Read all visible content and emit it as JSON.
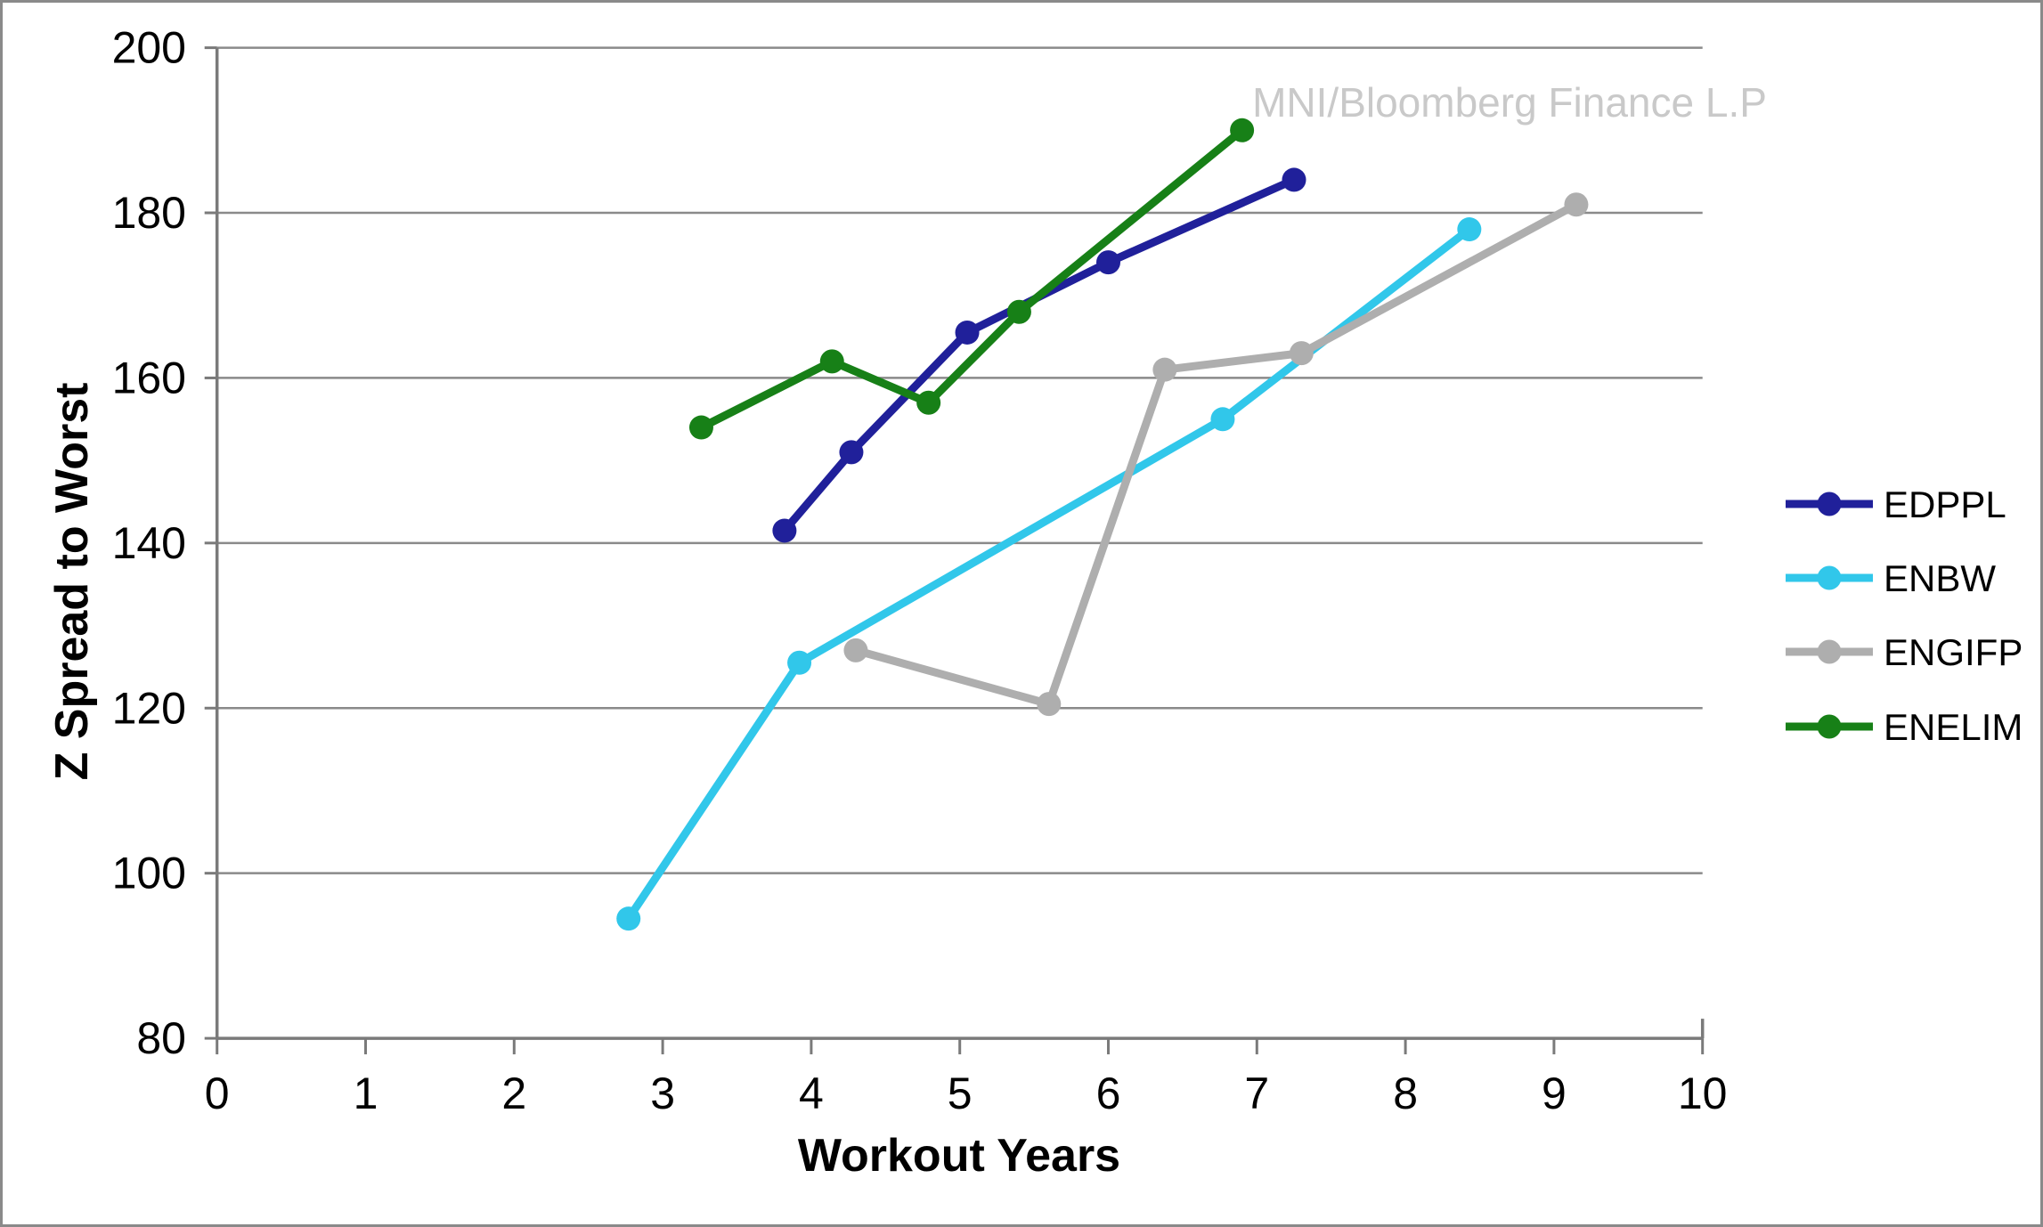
{
  "frame": {
    "background": "#ffffff",
    "border_color": "#8a8a8a"
  },
  "watermark": {
    "text": "MNI/Bloomberg Finance L.P",
    "color": "#c9c9c9"
  },
  "chart_data": {
    "type": "line",
    "title": "",
    "xlabel": "Workout Years",
    "ylabel": "Z Spread to Worst",
    "xlim": [
      0,
      10
    ],
    "ylim": [
      80,
      200
    ],
    "x_ticks": [
      0,
      1,
      2,
      3,
      4,
      5,
      6,
      7,
      8,
      9,
      10
    ],
    "y_ticks": [
      80,
      100,
      120,
      140,
      160,
      180,
      200
    ],
    "grid": "horizontal",
    "gridline_color": "#8a8a8a",
    "axis_color": "#7a7a7a",
    "legend_position": "right",
    "marker": "circle",
    "series": [
      {
        "name": "EDPPL",
        "color": "#20209a",
        "points": [
          [
            3.82,
            141.5
          ],
          [
            4.27,
            151
          ],
          [
            5.05,
            165.5
          ],
          [
            6.0,
            174
          ],
          [
            7.25,
            184
          ]
        ]
      },
      {
        "name": "ENBW",
        "color": "#31c7ea",
        "points": [
          [
            2.77,
            94.5
          ],
          [
            3.92,
            125.5
          ],
          [
            6.77,
            155
          ],
          [
            8.43,
            178
          ]
        ]
      },
      {
        "name": "ENGIFP",
        "color": "#aeaeae",
        "points": [
          [
            4.3,
            127
          ],
          [
            5.6,
            120.5
          ],
          [
            6.38,
            161
          ],
          [
            7.3,
            163
          ],
          [
            9.15,
            181
          ]
        ]
      },
      {
        "name": "ENELIM",
        "color": "#178017",
        "points": [
          [
            3.26,
            154
          ],
          [
            4.14,
            162
          ],
          [
            4.79,
            157
          ],
          [
            5.4,
            168
          ],
          [
            6.9,
            190
          ]
        ]
      }
    ]
  }
}
